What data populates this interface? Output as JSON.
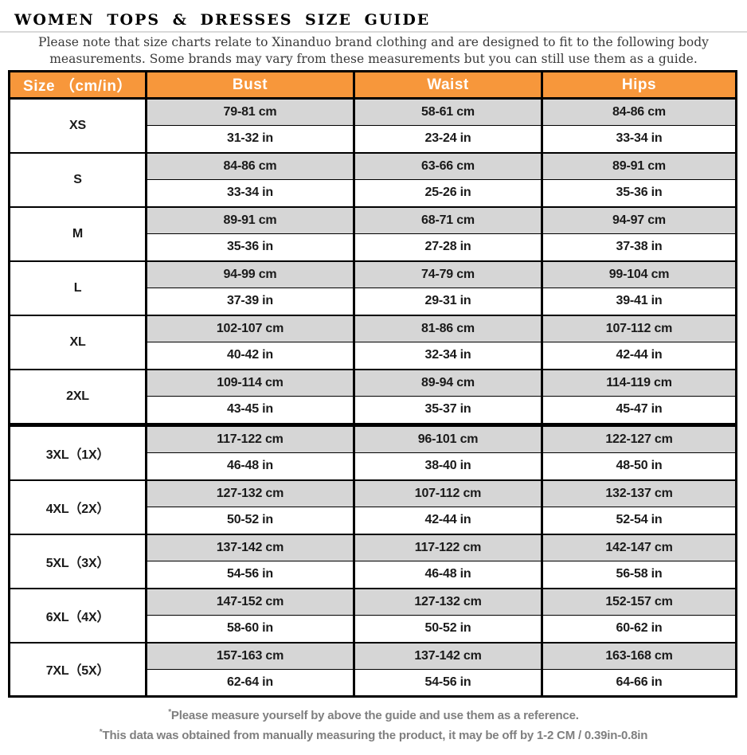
{
  "colors": {
    "header_bg": "#F7973B",
    "header_text": "#FFFFFF",
    "cm_row_bg": "#D6D6D6",
    "separator_fill": "#B4B4B4",
    "note_text": "#3A3A3A",
    "footer_text": "#7F7F7F"
  },
  "header": {
    "title": "WOMEN TOPS & DRESSES SIZE GUIDE",
    "note_line1": "Please note that size charts relate to  Xinanduo brand clothing and are designed to fit to the following body",
    "note_line2": "measurements. Some brands may vary from these measurements but you can still use them as a guide."
  },
  "table": {
    "headers": [
      "Size （cm/in）",
      "Bust",
      "Waist",
      "Hips"
    ],
    "rows": [
      {
        "size": "XS",
        "bust_cm": "79-81 cm",
        "bust_in": "31-32 in",
        "waist_cm": "58-61 cm",
        "waist_in": "23-24 in",
        "hips_cm": "84-86 cm",
        "hips_in": "33-34 in"
      },
      {
        "size": "S",
        "bust_cm": "84-86 cm",
        "bust_in": "33-34 in",
        "waist_cm": "63-66 cm",
        "waist_in": "25-26 in",
        "hips_cm": "89-91 cm",
        "hips_in": "35-36 in"
      },
      {
        "size": "M",
        "bust_cm": "89-91 cm",
        "bust_in": "35-36 in",
        "waist_cm": "68-71 cm",
        "waist_in": "27-28 in",
        "hips_cm": "94-97 cm",
        "hips_in": "37-38 in"
      },
      {
        "size": "L",
        "bust_cm": "94-99 cm",
        "bust_in": "37-39 in",
        "waist_cm": "74-79 cm",
        "waist_in": "29-31 in",
        "hips_cm": "99-104 cm",
        "hips_in": "39-41 in"
      },
      {
        "size": "XL",
        "bust_cm": "102-107 cm",
        "bust_in": "40-42 in",
        "waist_cm": "81-86 cm",
        "waist_in": "32-34 in",
        "hips_cm": "107-112 cm",
        "hips_in": "42-44 in"
      },
      {
        "size": "2XL",
        "bust_cm": "109-114 cm",
        "bust_in": "43-45 in",
        "waist_cm": "89-94 cm",
        "waist_in": "35-37 in",
        "hips_cm": "114-119 cm",
        "hips_in": "45-47 in"
      },
      {
        "size": "3XL（1X）",
        "bust_cm": "117-122 cm",
        "bust_in": "46-48 in",
        "waist_cm": "96-101 cm",
        "waist_in": "38-40 in",
        "hips_cm": "122-127 cm",
        "hips_in": "48-50 in"
      },
      {
        "size": "4XL（2X）",
        "bust_cm": "127-132 cm",
        "bust_in": "50-52 in",
        "waist_cm": "107-112 cm",
        "waist_in": "42-44 in",
        "hips_cm": "132-137 cm",
        "hips_in": "52-54 in"
      },
      {
        "size": "5XL（3X）",
        "bust_cm": "137-142 cm",
        "bust_in": "54-56 in",
        "waist_cm": "117-122 cm",
        "waist_in": "46-48 in",
        "hips_cm": "142-147 cm",
        "hips_in": "56-58 in"
      },
      {
        "size": "6XL（4X）",
        "bust_cm": "147-152 cm",
        "bust_in": "58-60 in",
        "waist_cm": "127-132 cm",
        "waist_in": "50-52 in",
        "hips_cm": "152-157 cm",
        "hips_in": "60-62 in"
      },
      {
        "size": "7XL（5X）",
        "bust_cm": "157-163 cm",
        "bust_in": "62-64 in",
        "waist_cm": "137-142 cm",
        "waist_in": "54-56 in",
        "hips_cm": "163-168 cm",
        "hips_in": "64-66 in"
      }
    ]
  },
  "footer": {
    "asterisk": "*",
    "note1": "Please measure yourself by above the guide and use them as a reference.",
    "note2": "This data was obtained from manually measuring the product, it may be off by 1-2 CM / 0.39in-0.8in"
  }
}
